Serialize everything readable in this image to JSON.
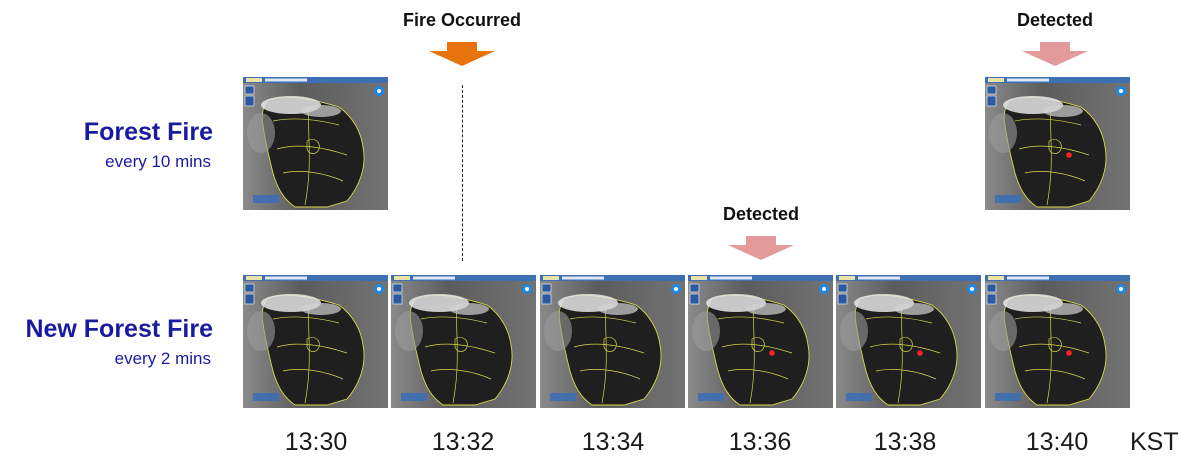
{
  "rows": [
    {
      "title": "Forest Fire",
      "subtitle": "every 10 mins"
    },
    {
      "title": "New Forest Fire",
      "subtitle": "every 2 mins"
    }
  ],
  "events": {
    "fire_occurred": "Fire Occurred",
    "detected_new": "Detected",
    "detected_old": "Detected"
  },
  "times": [
    "13:30",
    "13:32",
    "13:34",
    "13:36",
    "13:38",
    "13:40"
  ],
  "time_unit": "KST",
  "colors": {
    "title": "#1a1aa0",
    "fire_arrow": "#e8730c",
    "detected_arrow": "#e39a9a",
    "fire_marker": "#ff2020",
    "boundary": "#d8d84a"
  }
}
